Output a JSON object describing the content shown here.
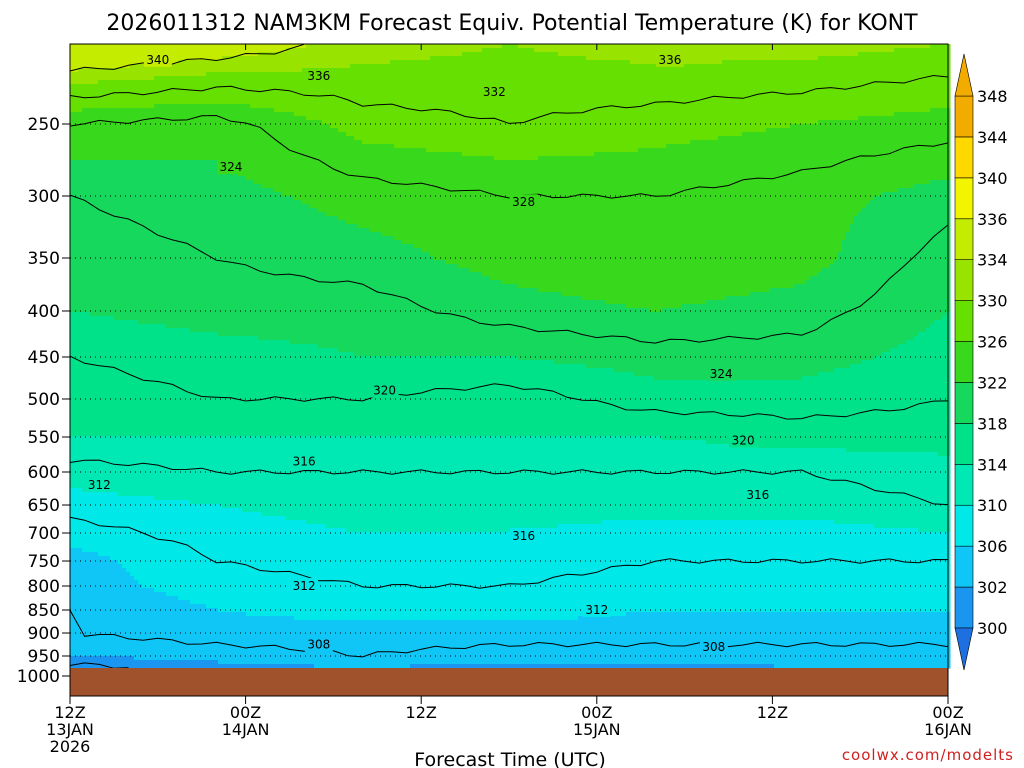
{
  "chart_data": {
    "type": "heatmap",
    "title": "2026011312 NAM3KM Forecast Equiv. Potential Temperature (K) for KONT",
    "xlabel": "Forecast Time (UTC)",
    "ylabel": "",
    "x_hours": [
      0,
      12,
      24,
      36,
      48,
      60
    ],
    "x_tick_labels": [
      {
        "hour": 0,
        "lines": [
          "12Z",
          "13JAN",
          "2026"
        ]
      },
      {
        "hour": 12,
        "lines": [
          "00Z",
          "14JAN"
        ]
      },
      {
        "hour": 24,
        "lines": [
          "12Z"
        ]
      },
      {
        "hour": 36,
        "lines": [
          "00Z",
          "15JAN"
        ]
      },
      {
        "hour": 48,
        "lines": [
          "12Z"
        ]
      },
      {
        "hour": 60,
        "lines": [
          "00Z",
          "16JAN"
        ]
      }
    ],
    "y_ticks_hpa": [
      250,
      300,
      350,
      400,
      450,
      500,
      550,
      600,
      650,
      700,
      750,
      800,
      850,
      900,
      950,
      1000
    ],
    "pressure_levels": [
      200,
      250,
      300,
      350,
      400,
      450,
      500,
      550,
      600,
      650,
      700,
      750,
      800,
      850,
      900,
      950,
      975
    ],
    "theta_e_K": [
      [
        340,
        338,
        335,
        334,
        335,
        335,
        334
      ],
      [
        328,
        327,
        331,
        332,
        331,
        330,
        329
      ],
      [
        324,
        325,
        327,
        328,
        328,
        327,
        325
      ],
      [
        323,
        324,
        325,
        327,
        328,
        327,
        323
      ],
      [
        322,
        323,
        323,
        325,
        326,
        325,
        322
      ],
      [
        320,
        321,
        322,
        322,
        323,
        323,
        321
      ],
      [
        319,
        320,
        320,
        319,
        321,
        321,
        320
      ],
      [
        318,
        318,
        318,
        318,
        318,
        319,
        319
      ],
      [
        315,
        316,
        316,
        316,
        316,
        316,
        317
      ],
      [
        313,
        314,
        315,
        315,
        315,
        315,
        316
      ],
      [
        311,
        313,
        314,
        314,
        313,
        313,
        314
      ],
      [
        309,
        312,
        313,
        313,
        312,
        312,
        312
      ],
      [
        309,
        311,
        312,
        312,
        311,
        311,
        311
      ],
      [
        308,
        310,
        311,
        311,
        310,
        310,
        310
      ],
      [
        308,
        309,
        309,
        309,
        309,
        309,
        309
      ],
      [
        306,
        307,
        308,
        307,
        307,
        307,
        307
      ],
      [
        303,
        305,
        306,
        305,
        305,
        306,
        306
      ]
    ],
    "contour_labels": [
      {
        "value": "340",
        "hour": 6.0,
        "hpa": 210
      },
      {
        "value": "336",
        "hour": 17.0,
        "hpa": 220
      },
      {
        "value": "336",
        "hour": 41.0,
        "hpa": 210
      },
      {
        "value": "332",
        "hour": 29.0,
        "hpa": 230
      },
      {
        "value": "324",
        "hour": 11.0,
        "hpa": 280
      },
      {
        "value": "328",
        "hour": 31.0,
        "hpa": 305
      },
      {
        "value": "324",
        "hour": 44.5,
        "hpa": 470
      },
      {
        "value": "320",
        "hour": 21.5,
        "hpa": 490
      },
      {
        "value": "320",
        "hour": 46.0,
        "hpa": 555
      },
      {
        "value": "316",
        "hour": 16.0,
        "hpa": 585
      },
      {
        "value": "316",
        "hour": 47.0,
        "hpa": 635
      },
      {
        "value": "316",
        "hour": 31.0,
        "hpa": 705
      },
      {
        "value": "312",
        "hour": 2.0,
        "hpa": 620
      },
      {
        "value": "312",
        "hour": 16.0,
        "hpa": 800
      },
      {
        "value": "312",
        "hour": 36.0,
        "hpa": 850
      },
      {
        "value": "308",
        "hour": 17.0,
        "hpa": 925
      },
      {
        "value": "308",
        "hour": 44.0,
        "hpa": 930
      }
    ],
    "colorbar": {
      "levels": [
        300,
        302,
        306,
        310,
        314,
        318,
        322,
        326,
        330,
        334,
        336,
        340,
        344,
        348
      ],
      "colors": [
        "#1e6fe0",
        "#1a96f0",
        "#10c6f6",
        "#00e8e8",
        "#00e8b4",
        "#00e28a",
        "#16d85c",
        "#38d81c",
        "#66e000",
        "#98e400",
        "#c4ec00",
        "#f2f400",
        "#ffd800",
        "#f2ac00"
      ]
    },
    "ground_color": "#a0522d",
    "credit": "coolwx.com/modelts"
  }
}
